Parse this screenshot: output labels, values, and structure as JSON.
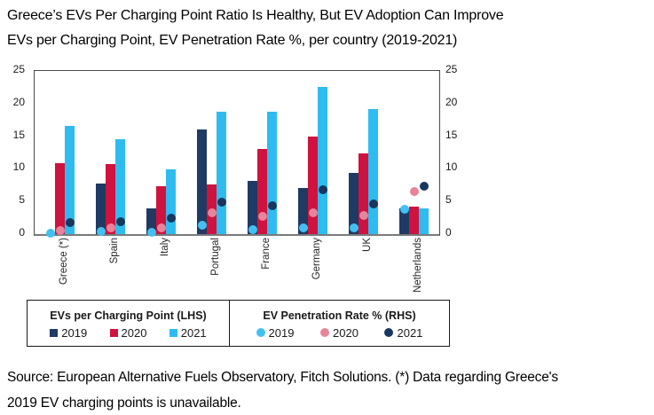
{
  "page": {
    "title": "Greece’s EVs Per Charging Point Ratio Is Healthy, But EV Adoption Can Improve",
    "subtitle": "EVs per Charging Point, EV Penetration Rate %, per country (2019-2021)",
    "source_line1": "Source: European Alternative Fuels Observatory, Fitch Solutions. (*) Data regarding Greece's",
    "source_line2": "2019 EV charging points is unavailable."
  },
  "chart_data": {
    "type": "combo-bar-scatter",
    "title": "Greece’s EVs Per Charging Point Ratio Is Healthy, But EV Adoption Can Improve",
    "subtitle": "EVs per Charging Point, EV Penetration Rate %, per country (2019-2021)",
    "categories": [
      "Greece (*)",
      "Spain",
      "Italy",
      "Portugal",
      "France",
      "Germany",
      "UK",
      "Netherlands"
    ],
    "bar_series": [
      {
        "name": "2019",
        "axis": "LHS",
        "color": "#1f3a63",
        "values": [
          null,
          7.8,
          4.0,
          16.0,
          8.2,
          7.1,
          9.4,
          4.0
        ]
      },
      {
        "name": "2020",
        "axis": "LHS",
        "color": "#d0123e",
        "values": [
          10.9,
          10.8,
          7.3,
          7.6,
          13.0,
          14.9,
          12.4,
          4.2
        ]
      },
      {
        "name": "2021",
        "axis": "LHS",
        "color": "#2ebcf0",
        "values": [
          16.6,
          14.5,
          9.9,
          18.7,
          18.7,
          22.5,
          19.2,
          3.9
        ]
      }
    ],
    "scatter_series": [
      {
        "name": "2019",
        "axis": "RHS",
        "color": "#41c0f2",
        "values": [
          0.2,
          0.4,
          0.3,
          1.4,
          0.7,
          0.9,
          0.9,
          3.8
        ]
      },
      {
        "name": "2020",
        "axis": "RHS",
        "color": "#e8839a",
        "values": [
          0.6,
          0.9,
          1.0,
          3.2,
          2.7,
          3.3,
          2.8,
          6.5
        ]
      },
      {
        "name": "2021",
        "axis": "RHS",
        "color": "#17375e",
        "values": [
          1.8,
          1.9,
          2.5,
          4.9,
          4.3,
          6.8,
          4.6,
          7.3
        ]
      }
    ],
    "legend": {
      "lhs_title": "EVs per Charging Point (LHS)",
      "rhs_title": "EV Penetration Rate % (RHS)"
    },
    "y_left": {
      "min": 0,
      "max": 25,
      "ticks": [
        0,
        5,
        10,
        15,
        20,
        25
      ]
    },
    "y_right": {
      "min": 0,
      "max": 25,
      "ticks": [
        0,
        5,
        10,
        15,
        20,
        25
      ]
    },
    "grid": false,
    "legend_position": "bottom"
  }
}
